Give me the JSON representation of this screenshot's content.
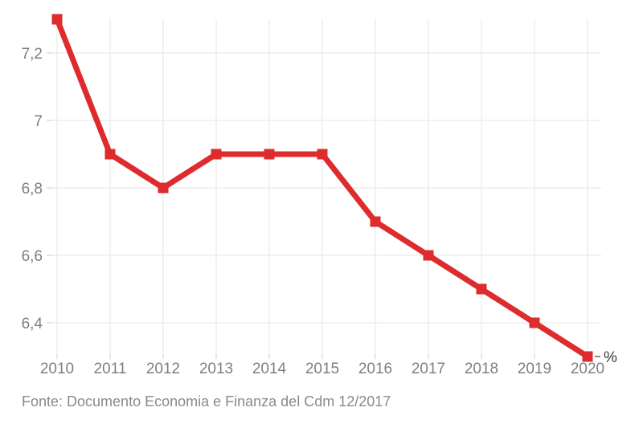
{
  "chart_data": {
    "type": "line",
    "title": "",
    "categories": [
      "2010",
      "2011",
      "2012",
      "2013",
      "2014",
      "2015",
      "2016",
      "2017",
      "2018",
      "2019",
      "2020"
    ],
    "series": [
      {
        "name": "%",
        "color": "#de2b2d",
        "values": [
          7.3,
          6.9,
          6.8,
          6.9,
          6.9,
          6.9,
          6.7,
          6.6,
          6.5,
          6.4,
          6.3
        ]
      }
    ],
    "xlabel": "",
    "ylabel": "",
    "ylim": [
      6.3,
      7.3
    ],
    "y_ticks": [
      {
        "value": 7.2,
        "label": "7,2"
      },
      {
        "value": 7.0,
        "label": "7"
      },
      {
        "value": 6.8,
        "label": "6,8"
      },
      {
        "value": 6.6,
        "label": "6,6"
      },
      {
        "value": 6.4,
        "label": "6,4"
      }
    ],
    "grid": true,
    "legend_position": "end-of-line",
    "end_label": "%"
  },
  "footer": {
    "source": "Fonte: Documento Economia e Finanza del Cdm 12/2017"
  },
  "colors": {
    "background": "#ffffff",
    "line": "#de2b2d",
    "grid": "#e5e5e5",
    "grid_tick": "#cfcfcf",
    "axis_label": "#7f7f7f",
    "end_label": "#3a3a3a",
    "end_label_tick": "#8a8a8a",
    "source_text": "#8a8a8a"
  }
}
